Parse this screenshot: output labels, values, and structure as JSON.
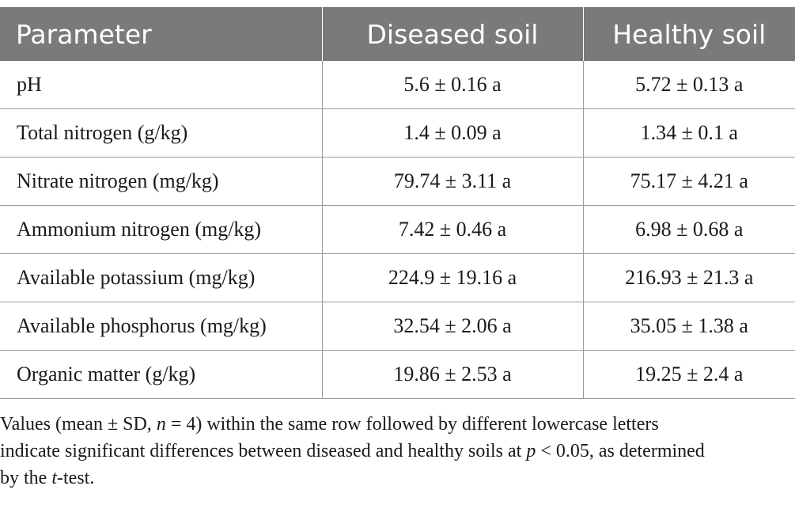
{
  "table": {
    "headers": [
      "Parameter",
      "Diseased soil",
      "Healthy soil"
    ],
    "rows": [
      [
        "pH",
        "5.6 ± 0.16 a",
        "5.72 ± 0.13 a"
      ],
      [
        "Total nitrogen (g/kg)",
        "1.4 ± 0.09 a",
        "1.34 ± 0.1 a"
      ],
      [
        "Nitrate nitrogen (mg/kg)",
        "79.74 ± 3.11 a",
        "75.17 ± 4.21 a"
      ],
      [
        "Ammonium nitrogen (mg/kg)",
        "7.42 ± 0.46 a",
        "6.98 ± 0.68 a"
      ],
      [
        "Available potassium (mg/kg)",
        "224.9 ± 19.16 a",
        "216.93 ± 21.3 a"
      ],
      [
        "Available phosphorus (mg/kg)",
        "32.54 ± 2.06 a",
        "35.05 ± 1.38 a"
      ],
      [
        "Organic matter (g/kg)",
        "19.86 ± 2.53 a",
        "19.25 ± 2.4 a"
      ]
    ]
  },
  "footnote": {
    "part1": "Values (mean ± SD, ",
    "n_var": "n",
    "part2": " = 4) within the same row followed by different lowercase letters",
    "part3": "indicate significant differences between diseased and healthy soils at ",
    "p_var": "p",
    "part4": " < 0.05, as determined",
    "part5": "by the ",
    "t_var": "t",
    "part6": "-test."
  }
}
